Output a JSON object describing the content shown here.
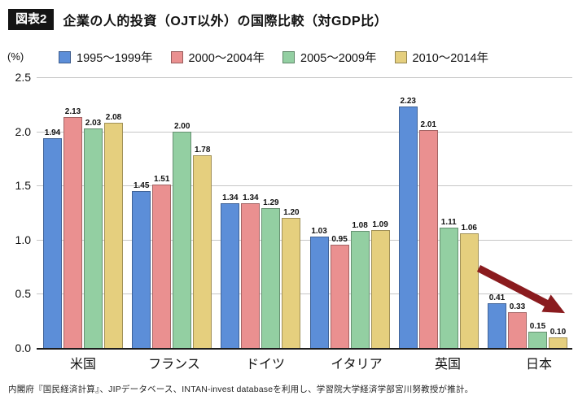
{
  "header": {
    "badge": "図表2",
    "title": "企業の人的投資（OJT以外）の国際比較（対GDP比）"
  },
  "chart_data": {
    "type": "bar",
    "title": "企業の人的投資（OJT以外）の国際比較（対GDP比）",
    "ylabel": "(%)",
    "categories": [
      "米国",
      "フランス",
      "ドイツ",
      "イタリア",
      "英国",
      "日本"
    ],
    "series": [
      {
        "name": "1995～1999年",
        "color": "#5c8ed8",
        "values": [
          1.94,
          1.45,
          1.34,
          1.03,
          2.23,
          0.41
        ]
      },
      {
        "name": "2000～2004年",
        "color": "#ea9090",
        "values": [
          2.13,
          1.51,
          1.34,
          0.95,
          2.01,
          0.33
        ]
      },
      {
        "name": "2005～2009年",
        "color": "#93cfa2",
        "values": [
          2.03,
          2.0,
          1.29,
          1.08,
          1.11,
          0.15
        ]
      },
      {
        "name": "2010～2014年",
        "color": "#e5cf7e",
        "values": [
          2.08,
          1.78,
          1.2,
          1.09,
          1.06,
          0.1
        ]
      }
    ],
    "ylim": [
      0,
      2.5
    ],
    "ytick_labels": [
      "2.5",
      "2.0",
      "1.5",
      "1.0",
      "0.5",
      "0.0"
    ],
    "grid": true,
    "legend_position": "top",
    "value_labels": true,
    "annotations": [
      {
        "shape": "arrow",
        "direction": "down-right",
        "color": "#8a1b1e",
        "target": "日本"
      }
    ]
  },
  "footer": {
    "source": "内閣府『国民経済計算』、JIPデータベース、INTAN-invest databaseを利用し、学習院大学経済学部宮川努教授が推計。"
  }
}
